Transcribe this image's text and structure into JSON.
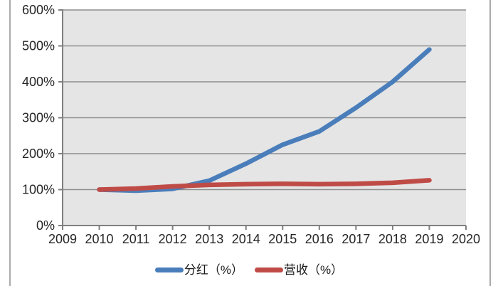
{
  "chart_data": {
    "type": "line",
    "x": [
      2010,
      2011,
      2012,
      2013,
      2014,
      2015,
      2016,
      2017,
      2018,
      2019
    ],
    "series": [
      {
        "key": "fenhong",
        "name": "分红（%）",
        "color": "#4a7ebb",
        "values": [
          100,
          97,
          102,
          125,
          172,
          225,
          262,
          328,
          400,
          490
        ]
      },
      {
        "key": "yingshou",
        "name": "营收（%）",
        "color": "#bf4b47",
        "values": [
          100,
          103,
          109,
          113,
          115,
          116,
          115,
          116,
          119,
          126
        ]
      }
    ],
    "title": "",
    "xlabel": "",
    "ylabel": "",
    "x_axis": {
      "min": 2009,
      "max": 2020,
      "ticks": [
        2009,
        2010,
        2011,
        2012,
        2013,
        2014,
        2015,
        2016,
        2017,
        2018,
        2019,
        2020
      ]
    },
    "y_axis": {
      "min": 0,
      "max": 600,
      "step": 100,
      "tick_labels": [
        "0%",
        "100%",
        "200%",
        "300%",
        "400%",
        "500%",
        "600%"
      ]
    },
    "grid": true,
    "legend_position": "bottom",
    "colors": {
      "plot_bg": "#e5e5e5",
      "grid_color": "#8f8f8f",
      "axis_color": "#7f7f7f",
      "label_color": "#262626",
      "page_bg": "#ffffff",
      "side_border": "#aaaaaa"
    }
  }
}
